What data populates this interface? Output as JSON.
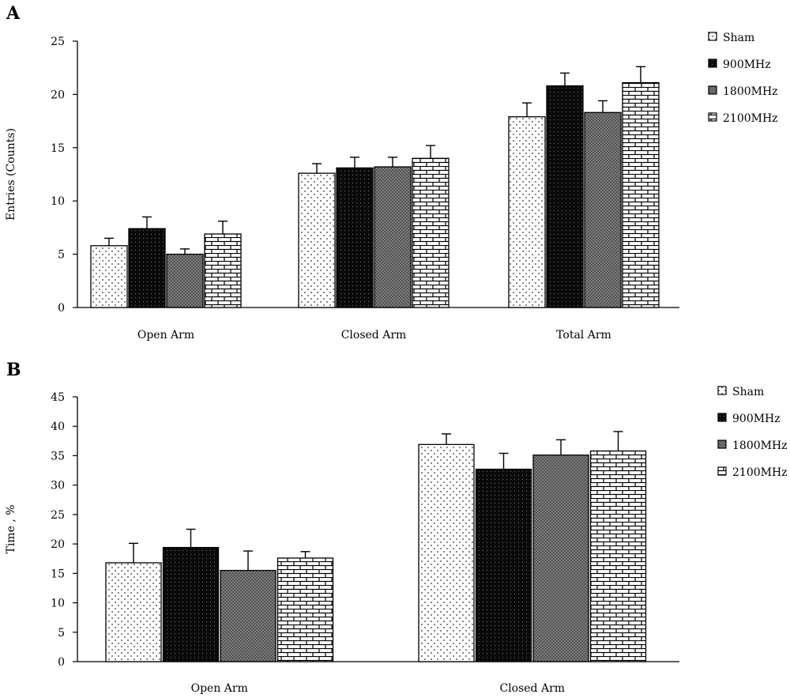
{
  "chart_data": [
    {
      "panel": "A",
      "type": "bar",
      "ylabel": "Entries (Counts)",
      "xlabel": "",
      "ylim": [
        0,
        25
      ],
      "yticks": [
        0,
        5,
        10,
        15,
        20,
        25
      ],
      "grid": false,
      "legend": "right",
      "categories": [
        "Open Arm",
        "Closed Arm",
        "Total Arm"
      ],
      "series": [
        {
          "name": "Sham",
          "pattern": "dots",
          "values": [
            5.8,
            12.6,
            17.9
          ],
          "errors": [
            0.7,
            0.9,
            1.3
          ]
        },
        {
          "name": "900MHz",
          "pattern": "black",
          "values": [
            7.4,
            13.1,
            20.8
          ],
          "errors": [
            1.1,
            1.0,
            1.2
          ]
        },
        {
          "name": "1800MHz",
          "pattern": "gray",
          "values": [
            5.0,
            13.2,
            18.3
          ],
          "errors": [
            0.5,
            0.9,
            1.1
          ]
        },
        {
          "name": "2100MHz",
          "pattern": "bricks",
          "values": [
            6.9,
            14.0,
            21.1
          ],
          "errors": [
            1.2,
            1.2,
            1.5
          ]
        }
      ]
    },
    {
      "panel": "B",
      "type": "bar",
      "ylabel": "Time , %",
      "xlabel": "",
      "ylim": [
        0,
        45
      ],
      "yticks": [
        0,
        5,
        10,
        15,
        20,
        25,
        30,
        35,
        40,
        45
      ],
      "grid": false,
      "legend": "right",
      "categories": [
        "Open Arm",
        "Closed Arm"
      ],
      "series": [
        {
          "name": "Sham",
          "pattern": "dots",
          "values": [
            16.8,
            36.9
          ],
          "errors": [
            3.3,
            1.8
          ]
        },
        {
          "name": "900MHz",
          "pattern": "black",
          "values": [
            19.4,
            32.7
          ],
          "errors": [
            3.1,
            2.7
          ]
        },
        {
          "name": "1800MHz",
          "pattern": "gray",
          "values": [
            15.5,
            35.1
          ],
          "errors": [
            3.3,
            2.6
          ]
        },
        {
          "name": "2100MHz",
          "pattern": "bricks",
          "values": [
            17.6,
            35.8
          ],
          "errors": [
            1.1,
            3.3
          ]
        }
      ]
    }
  ]
}
